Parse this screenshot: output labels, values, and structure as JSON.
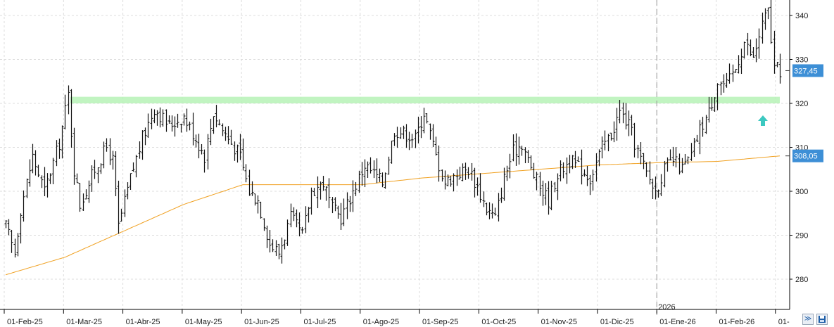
{
  "chart_data": {
    "type": "ohlc",
    "price_axis": {
      "min": 273,
      "max": 345,
      "ticks": [
        280,
        290,
        300,
        310,
        320,
        330,
        340
      ]
    },
    "time_axis": {
      "labels": [
        "01-Feb-25",
        "01-Mar-25",
        "01-Abr-25",
        "01-May-25",
        "01-Jun-25",
        "01-Jul-25",
        "01-Ago-25",
        "01-Sep-25",
        "01-Oct-25",
        "01-Nov-25",
        "01-Dic-25",
        "01-Ene-26",
        "01-Feb-26",
        "01-"
      ],
      "year_marker": "2026",
      "label_positions": [
        0,
        20,
        40,
        60,
        80,
        100,
        120,
        140,
        160,
        180,
        200,
        220,
        240,
        260
      ]
    },
    "resistance_zone": {
      "low": 320,
      "high": 321.5,
      "color": "#b6f2b6"
    },
    "moving_average": {
      "color": "#f0a020",
      "last_value": "308,05"
    },
    "last_price": {
      "value": "327,45",
      "color": "#3d8fd6"
    },
    "ma_tag": {
      "value": "308,05",
      "color": "#3d8fd6"
    },
    "signal_arrow": {
      "direction": "up",
      "color": "#3cc8c0"
    },
    "anchors": [
      [
        0,
        292
      ],
      [
        3,
        286
      ],
      [
        5,
        296
      ],
      [
        9,
        308
      ],
      [
        13,
        300
      ],
      [
        18,
        311
      ],
      [
        21,
        322
      ],
      [
        23,
        305
      ],
      [
        25,
        297
      ],
      [
        30,
        305
      ],
      [
        34,
        310
      ],
      [
        36,
        307
      ],
      [
        38,
        292
      ],
      [
        42,
        303
      ],
      [
        46,
        312
      ],
      [
        50,
        319
      ],
      [
        55,
        315
      ],
      [
        60,
        317
      ],
      [
        64,
        312
      ],
      [
        67,
        308
      ],
      [
        70,
        318
      ],
      [
        73,
        314
      ],
      [
        76,
        311
      ],
      [
        79,
        308
      ],
      [
        82,
        300
      ],
      [
        85,
        298
      ],
      [
        89,
        288
      ],
      [
        92,
        286
      ],
      [
        96,
        294
      ],
      [
        100,
        290
      ],
      [
        103,
        300
      ],
      [
        107,
        302
      ],
      [
        110,
        296
      ],
      [
        113,
        294
      ],
      [
        117,
        300
      ],
      [
        121,
        306
      ],
      [
        124,
        304
      ],
      [
        127,
        302
      ],
      [
        131,
        314
      ],
      [
        135,
        313
      ],
      [
        138,
        312
      ],
      [
        141,
        318
      ],
      [
        145,
        308
      ],
      [
        148,
        302
      ],
      [
        152,
        304
      ],
      [
        156,
        305
      ],
      [
        159,
        301
      ],
      [
        162,
        296
      ],
      [
        165,
        294
      ],
      [
        168,
        303
      ],
      [
        171,
        309
      ],
      [
        174,
        311
      ],
      [
        177,
        305
      ],
      [
        180,
        301
      ],
      [
        183,
        298
      ],
      [
        186,
        304
      ],
      [
        190,
        307
      ],
      [
        194,
        305
      ],
      [
        197,
        303
      ],
      [
        201,
        310
      ],
      [
        204,
        313
      ],
      [
        207,
        318
      ],
      [
        210,
        315
      ],
      [
        213,
        309
      ],
      [
        216,
        304
      ],
      [
        219,
        300
      ],
      [
        222,
        305
      ],
      [
        225,
        307
      ],
      [
        228,
        305
      ],
      [
        231,
        308
      ],
      [
        234,
        314
      ],
      [
        237,
        318
      ],
      [
        240,
        325
      ],
      [
        243,
        324
      ],
      [
        246,
        328
      ],
      [
        249,
        334
      ],
      [
        252,
        330
      ],
      [
        255,
        338
      ],
      [
        257,
        341
      ],
      [
        259,
        328
      ],
      [
        261,
        327.45
      ]
    ],
    "ma_anchors": [
      [
        0,
        281
      ],
      [
        20,
        285
      ],
      [
        40,
        291
      ],
      [
        60,
        297
      ],
      [
        80,
        301.5
      ],
      [
        100,
        301.5
      ],
      [
        120,
        301.5
      ],
      [
        140,
        303
      ],
      [
        160,
        304
      ],
      [
        180,
        305
      ],
      [
        200,
        306
      ],
      [
        220,
        306.5
      ],
      [
        240,
        306.8
      ],
      [
        261,
        308.05
      ]
    ]
  },
  "ui": {
    "scroll_left_icon": "≫",
    "save_icon": "save-icon"
  }
}
